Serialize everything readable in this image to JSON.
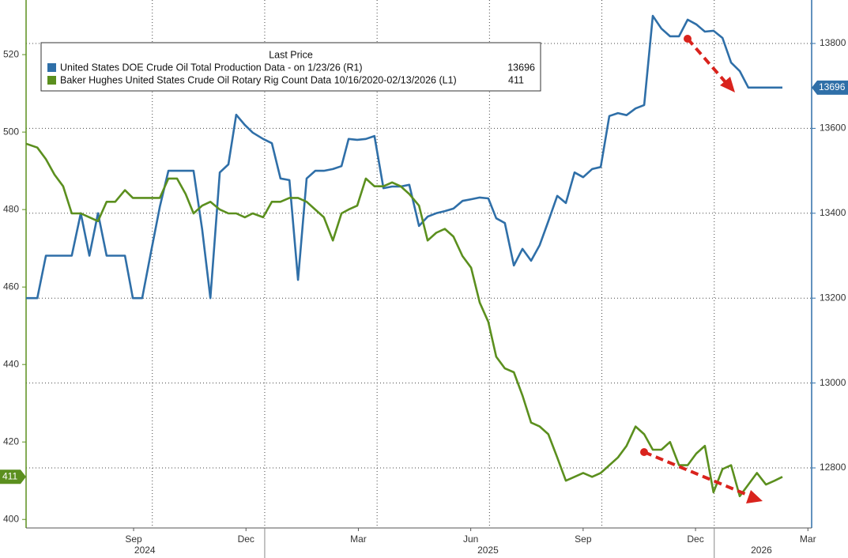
{
  "chart_data": {
    "type": "line",
    "legend_title": "Last Price",
    "x": [
      5.13,
      5.43,
      5.66,
      5.89,
      6.12,
      6.35,
      6.59,
      6.82,
      7.05,
      7.28,
      7.51,
      7.77,
      7.98,
      8.23,
      8.46,
      8.7,
      8.93,
      9.16,
      9.39,
      9.6,
      9.83,
      10.05,
      10.3,
      10.53,
      10.74,
      10.97,
      11.18,
      11.46,
      11.69,
      11.92,
      12.16,
      12.39,
      12.62,
      12.85,
      13.08,
      13.32,
      13.55,
      13.74,
      13.97,
      14.2,
      14.43,
      14.67,
      14.9,
      15.13,
      15.36,
      15.62,
      15.85,
      16.08,
      16.31,
      16.54,
      16.78,
      17.01,
      17.24,
      17.47,
      17.68,
      17.91,
      18.15,
      18.38,
      18.61,
      18.84,
      19.07,
      19.31,
      19.54,
      19.77,
      20.0,
      20.24,
      20.47,
      20.7,
      20.93,
      21.16,
      21.4,
      21.63,
      21.86,
      22.09,
      22.32,
      22.56,
      22.79,
      23.02,
      23.25,
      23.48,
      23.72,
      23.95,
      24.18,
      24.41,
      24.64,
      24.88,
      25.11,
      25.32
    ],
    "series": [
      {
        "name": "United States DOE Crude Oil Total Production Data -  on 1/23/26  (R1)",
        "color": "#2f6fa8",
        "axis": "y2",
        "last_value": 13696,
        "values": [
          13200,
          13200,
          13300,
          13300,
          13300,
          13300,
          13400,
          13300,
          13400,
          13300,
          13300,
          13300,
          13200,
          13200,
          13306,
          13415,
          13500,
          13500,
          13500,
          13500,
          13362,
          13200,
          13496,
          13515,
          13632,
          13608,
          13590,
          13575,
          13565,
          13482,
          13478,
          13243,
          13482,
          13500,
          13500,
          13504,
          13511,
          13575,
          13573,
          13575,
          13582,
          13459,
          13463,
          13463,
          13467,
          13370,
          13392,
          13400,
          13405,
          13411,
          13429,
          13433,
          13437,
          13435,
          13388,
          13377,
          13277,
          13316,
          13288,
          13325,
          13381,
          13441,
          13424,
          13496,
          13485,
          13504,
          13509,
          13629,
          13636,
          13631,
          13647,
          13655,
          13865,
          13835,
          13817,
          13817,
          13856,
          13845,
          13828,
          13830,
          13813,
          13755,
          13735,
          13696,
          13696,
          13696,
          13696,
          13696
        ]
      },
      {
        "name": "Baker Hughes United States Crude Oil Rotary Rig Count Data 10/16/2020-02/13/2026  (L1)",
        "color": "#5b8f1e",
        "axis": "y",
        "last_value": 411,
        "values": [
          497,
          496,
          493,
          489,
          486,
          479,
          479,
          478,
          477,
          482,
          482,
          485,
          483,
          483,
          483,
          483,
          488,
          488,
          484,
          479,
          481,
          482,
          480,
          479,
          479,
          478,
          479,
          478,
          482,
          482,
          483,
          483,
          482,
          480,
          478,
          472,
          479,
          480,
          481,
          488,
          486,
          486,
          487,
          486,
          484,
          481,
          472,
          474,
          475,
          473,
          468,
          465,
          456,
          451,
          442,
          439,
          438,
          432,
          425,
          424,
          422,
          416,
          410,
          411,
          412,
          411,
          412,
          414,
          416,
          419,
          424,
          422,
          418,
          418,
          420,
          414,
          414,
          417,
          419,
          407,
          413,
          414,
          406,
          409,
          412,
          409,
          410,
          411
        ]
      }
    ],
    "xlim": [
      5.13,
      26.1
    ],
    "xticks": [
      {
        "value": 8,
        "label": "Sep"
      },
      {
        "value": 11,
        "label": "Dec"
      },
      {
        "value": 14,
        "label": "Mar"
      },
      {
        "value": 17,
        "label": "Jun"
      },
      {
        "value": 20,
        "label": "Sep"
      },
      {
        "value": 23,
        "label": "Dec"
      },
      {
        "value": 26,
        "label": "Mar"
      }
    ],
    "xyears": [
      {
        "value": 8.3,
        "label": "2024"
      },
      {
        "value": 17.46,
        "label": "2025"
      },
      {
        "value": 24.76,
        "label": "2026"
      }
    ],
    "xgrid": [
      8.5,
      11.5,
      14.5,
      17.5,
      20.5,
      23.5
    ],
    "year_breaks": [
      11.5,
      23.5
    ],
    "ylim": [
      397.8,
      534.1
    ],
    "yticks": [
      400,
      420,
      440,
      460,
      480,
      500,
      520
    ],
    "y2lim": [
      12658.5,
      13902.4
    ],
    "y2ticks": [
      12800,
      13000,
      13200,
      13400,
      13600,
      13800
    ],
    "grid": true
  }
}
